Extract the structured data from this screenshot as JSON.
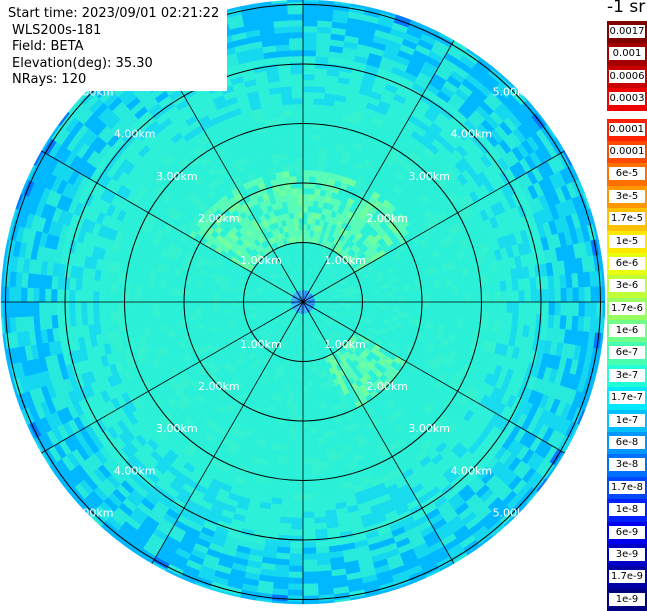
{
  "info": {
    "start_time": "Start time: 2023/09/01 02:21:22",
    "instrument": "WLS200s-181",
    "field": "Field: BETA",
    "elevation": "Elevation(deg): 35.30",
    "nrays": "NRays: 120"
  },
  "colorbar": {
    "title": "-1 sr",
    "levels": [
      {
        "label": "0.0017",
        "color": "#800000"
      },
      {
        "label": "0.001",
        "color": "#a40000"
      },
      {
        "label": "0.0006",
        "color": "#c80000"
      },
      {
        "label": "0.0003",
        "color": "#ec0000"
      },
      {
        "label": "0.00017",
        "color": "#ff2000"
      },
      {
        "label": "0.0001",
        "color": "#ff4800"
      },
      {
        "label": "6e-5",
        "color": "#ff7000"
      },
      {
        "label": "3e-5",
        "color": "#ff9800"
      },
      {
        "label": "1.7e-5",
        "color": "#ffc000"
      },
      {
        "label": "1e-5",
        "color": "#ffe800"
      },
      {
        "label": "6e-6",
        "color": "#e8ff10"
      },
      {
        "label": "3e-6",
        "color": "#c0ff38"
      },
      {
        "label": "1.7e-6",
        "color": "#98ff60"
      },
      {
        "label": "1e-6",
        "color": "#70ff88"
      },
      {
        "label": "6e-7",
        "color": "#48ffb0"
      },
      {
        "label": "3e-7",
        "color": "#20ffd8"
      },
      {
        "label": "1.7e-7",
        "color": "#00e8ff"
      },
      {
        "label": "1e-7",
        "color": "#00c0ff"
      },
      {
        "label": "6e-8",
        "color": "#0098ff"
      },
      {
        "label": "3e-8",
        "color": "#0070ff"
      },
      {
        "label": "1.7e-8",
        "color": "#0048ff"
      },
      {
        "label": "1e-8",
        "color": "#0020ff"
      },
      {
        "label": "6e-9",
        "color": "#0000ec"
      },
      {
        "label": "3e-9",
        "color": "#0000c8"
      },
      {
        "label": "1.7e-9",
        "color": "#0000a4"
      },
      {
        "label": "1e-9",
        "color": "#000080"
      }
    ]
  },
  "chart_data": {
    "type": "heatmap",
    "projection": "polar (PPI scan)",
    "field": "BETA",
    "units": "-1 sr",
    "color_scale": "logarithmic",
    "n_rays": 120,
    "range_rings_km": [
      1,
      2,
      3,
      4,
      5
    ],
    "ring_labels": [
      "1.00km",
      "2.00km",
      "3.00km",
      "4.00km",
      "5.00km"
    ],
    "spoke_angles_deg": [
      0,
      30,
      60,
      90,
      120,
      150,
      180,
      210,
      240,
      270,
      300,
      330
    ],
    "dominant_value": "1e-7 to 6e-7",
    "enhanced_regions": [
      {
        "range_km": [
          1.0,
          2.2
        ],
        "azimuth_deg": [
          300,
          60
        ],
        "value": "1e-6 to 1.7e-6"
      },
      {
        "range_km": [
          1.0,
          2.0
        ],
        "azimuth_deg": [
          120,
          160
        ],
        "value": "1e-6 to 1.7e-6"
      }
    ],
    "outer_ring_value": "3e-8 to 1e-7"
  }
}
